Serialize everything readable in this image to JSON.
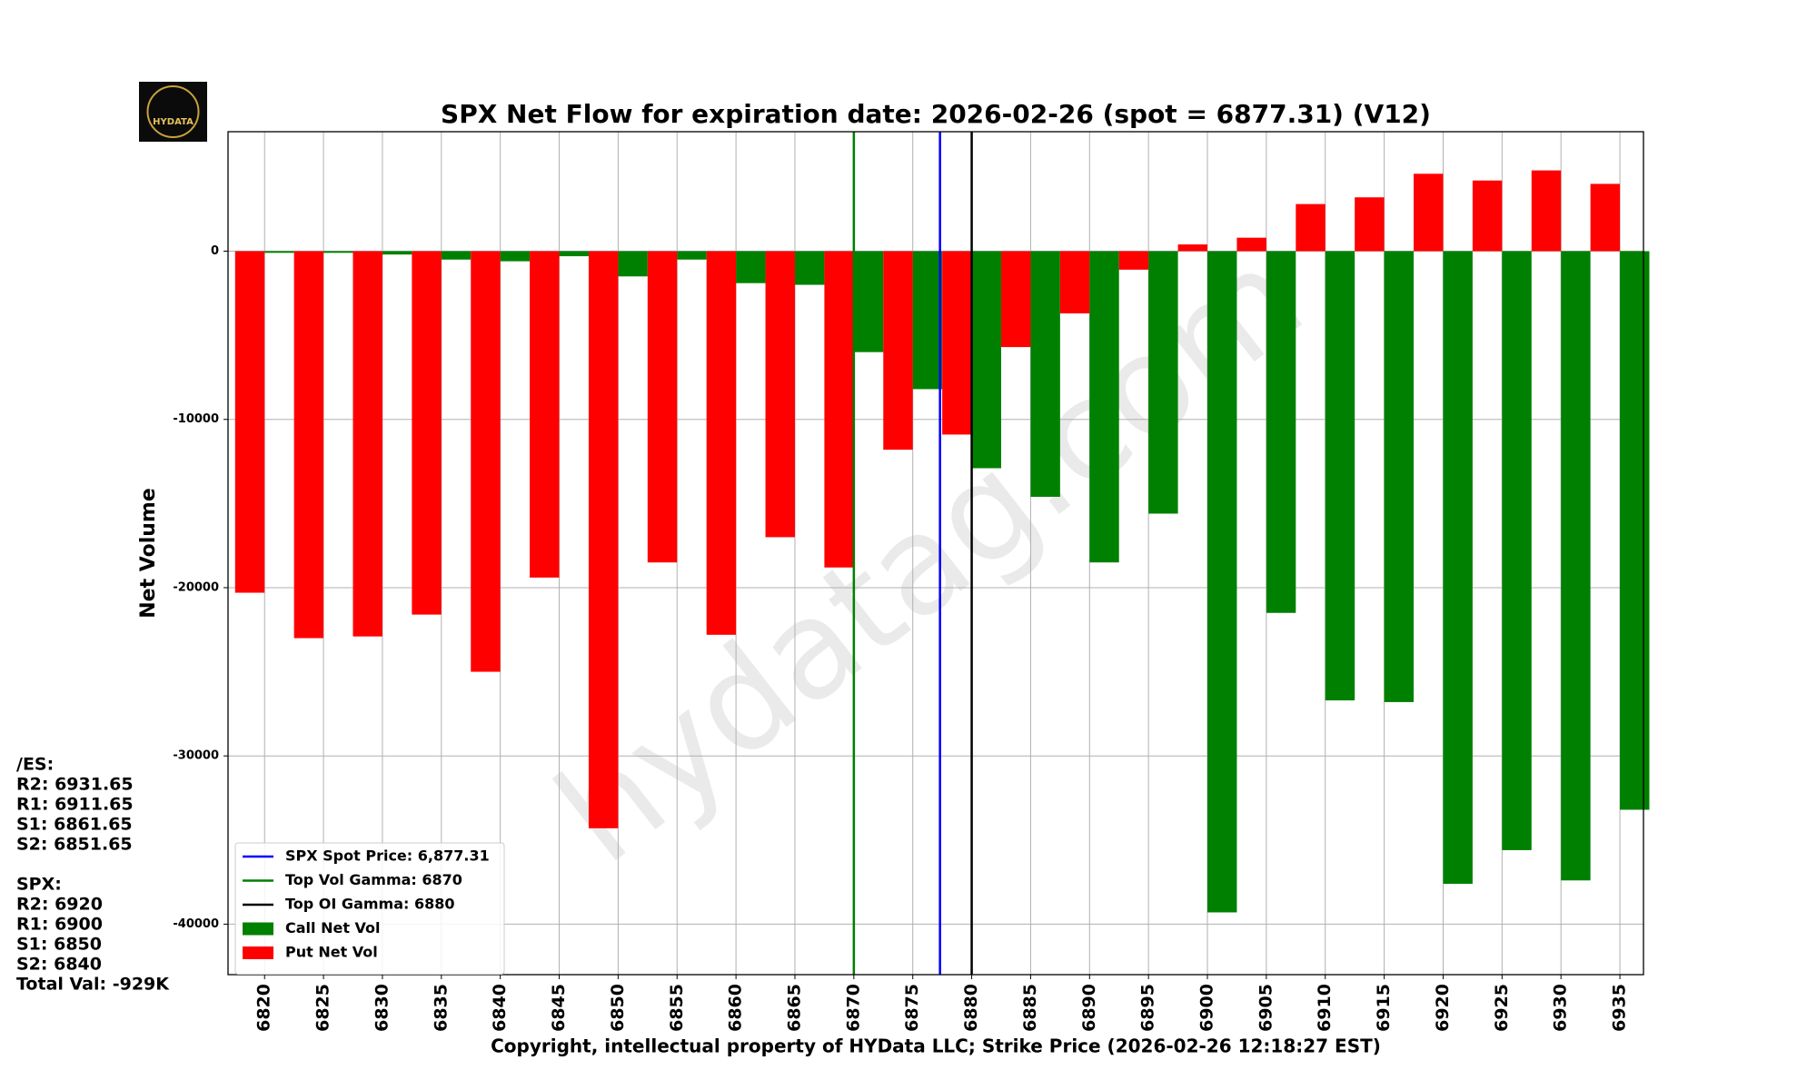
{
  "chart_data": {
    "type": "bar",
    "title": "SPX Net Flow for expiration date: 2026-02-26 (spot = 6877.31) (V12)",
    "xlabel": "Copyright, intellectual property of HYData LLC; Strike Price (2026-02-26 12:18:27 EST)",
    "ylabel": "Net Volume",
    "logo": "HYDATA",
    "watermark": "hydatag.com",
    "x": [
      6820,
      6825,
      6830,
      6835,
      6840,
      6845,
      6850,
      6855,
      6860,
      6865,
      6870,
      6875,
      6880,
      6885,
      6890,
      6895,
      6900,
      6905,
      6910,
      6915,
      6920,
      6925,
      6930,
      6935
    ],
    "bar_width": 2.5,
    "series": [
      {
        "name": "Call Net Vol",
        "color": "#008000",
        "side": "right",
        "values": [
          -100,
          -100,
          -200,
          -500,
          -600,
          -300,
          -1500,
          -500,
          -1900,
          -2000,
          -6000,
          -8200,
          -12900,
          -14600,
          -18500,
          -15600,
          -39300,
          -21500,
          -26700,
          -26800,
          -37600,
          -35600,
          -37400,
          -33200
        ]
      },
      {
        "name": "Put Net Vol",
        "color": "#ff0000",
        "side": "left",
        "values": [
          -20300,
          -23000,
          -22900,
          -21600,
          -25000,
          -19400,
          -34300,
          -18500,
          -22800,
          -17000,
          -18800,
          -11800,
          -10900,
          -5700,
          -3700,
          -1100,
          400,
          800,
          2800,
          3200,
          4600,
          4200,
          4800,
          4000
        ]
      }
    ],
    "vlines": [
      {
        "name": "SPX Spot Price: 6,877.31",
        "value": 6877.31,
        "color": "#0000ff"
      },
      {
        "name": "Top Vol Gamma: 6870",
        "value": 6870,
        "color": "#008000"
      },
      {
        "name": "Top OI Gamma: 6880",
        "value": 6880,
        "color": "#000000"
      }
    ],
    "xlim": [
      6816.9,
      6937.0
    ],
    "xticks": [
      6820,
      6825,
      6830,
      6835,
      6840,
      6845,
      6850,
      6855,
      6860,
      6865,
      6870,
      6875,
      6880,
      6885,
      6890,
      6895,
      6900,
      6905,
      6910,
      6915,
      6920,
      6925,
      6930,
      6935
    ],
    "ylim": [
      -43000,
      7100
    ],
    "yticks": [
      -40000,
      -30000,
      -20000,
      -10000,
      0
    ],
    "grid": true,
    "legend": "lower left",
    "side_notes": [
      [
        "/ES:",
        "R2: 6931.65",
        "R1: 6911.65",
        "S1: 6861.65",
        "S2: 6851.65"
      ],
      [
        "SPX:",
        "R2: 6920",
        "R1: 6900",
        "S1: 6850",
        "S2: 6840",
        "Total Val: -929K"
      ]
    ]
  }
}
